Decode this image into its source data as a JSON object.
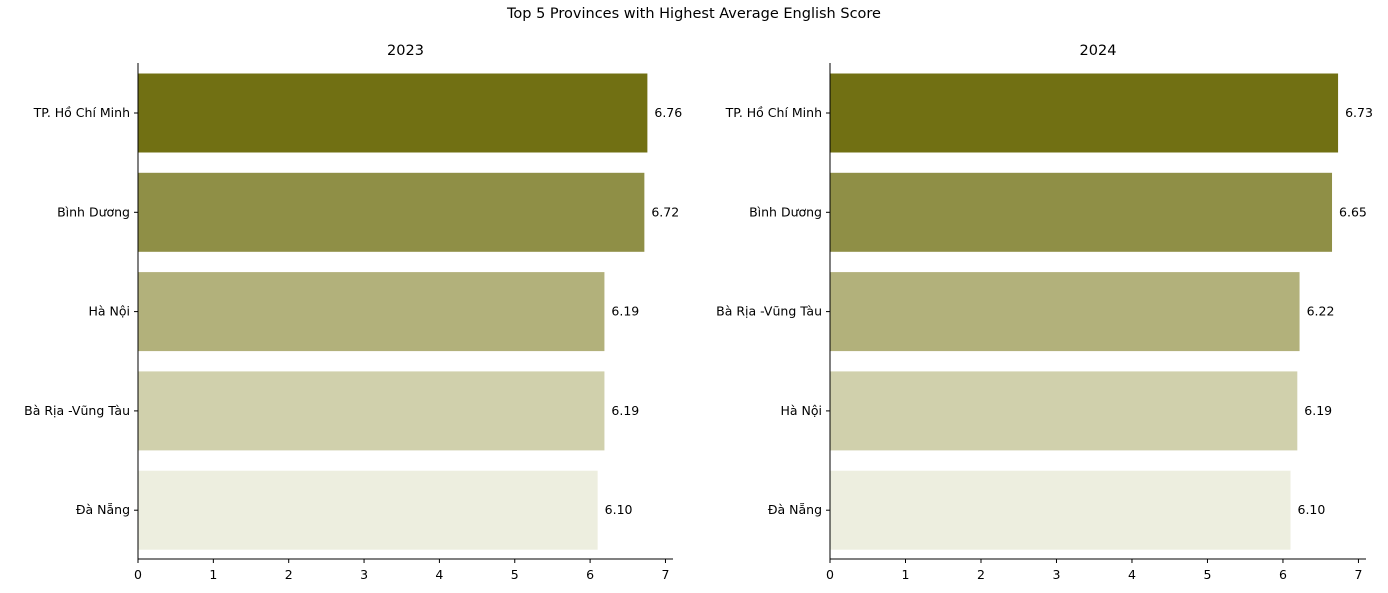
{
  "title": "Top 5 Provinces with Highest Average English Score",
  "chart_data": [
    {
      "type": "bar",
      "orientation": "horizontal",
      "title": "2023",
      "xlabel": "",
      "ylabel": "",
      "categories": [
        "TP. Hồ Chí Minh",
        "Bình Dương",
        "Hà Nội",
        "Bà Rịa -Vũng Tàu",
        "Đà Nẵng"
      ],
      "values": [
        6.76,
        6.72,
        6.19,
        6.19,
        6.1
      ],
      "value_labels": [
        "6.76",
        "6.72",
        "6.19",
        "6.19",
        "6.10"
      ],
      "colors": [
        "#717013",
        "#8f8f46",
        "#b2b17b",
        "#d0d0ac",
        "#edeedf"
      ],
      "xticks": [
        "0",
        "1",
        "2",
        "3",
        "4",
        "5",
        "6",
        "7"
      ],
      "xlim": [
        0,
        7.1
      ],
      "grid": false
    },
    {
      "type": "bar",
      "orientation": "horizontal",
      "title": "2024",
      "xlabel": "",
      "ylabel": "",
      "categories": [
        "TP. Hồ Chí Minh",
        "Bình Dương",
        "Bà Rịa -Vũng Tàu",
        "Hà Nội",
        "Đà Nẵng"
      ],
      "values": [
        6.73,
        6.65,
        6.22,
        6.19,
        6.1
      ],
      "value_labels": [
        "6.73",
        "6.65",
        "6.22",
        "6.19",
        "6.10"
      ],
      "colors": [
        "#717013",
        "#8f8f46",
        "#b2b17b",
        "#d0d0ac",
        "#edeedf"
      ],
      "xticks": [
        "0",
        "1",
        "2",
        "3",
        "4",
        "5",
        "6",
        "7"
      ],
      "xlim": [
        0,
        7.1
      ],
      "grid": false
    }
  ]
}
